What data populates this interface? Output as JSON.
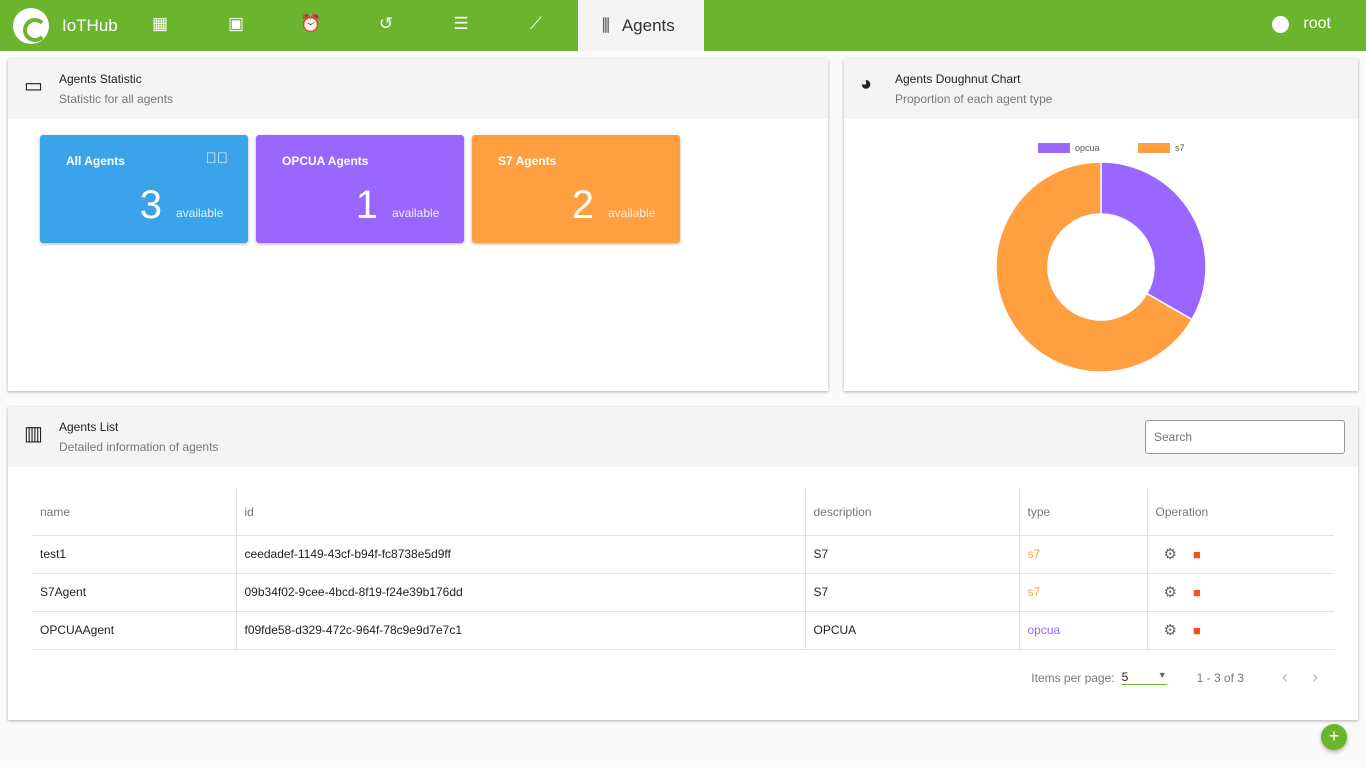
{
  "nav": {
    "brand": "IoTHub",
    "active_tab": "Agents",
    "user": "root",
    "icons": [
      "dashboard-icon",
      "device-icon",
      "alarm-icon",
      "history-icon",
      "list-icon",
      "chart-line-icon"
    ]
  },
  "stats_card": {
    "title": "Agents Statistic",
    "subtitle": "Statistic for all agents",
    "tiles": [
      {
        "label": "All Agents",
        "count": "3",
        "unit": "available",
        "color": "#3ba3ea"
      },
      {
        "label": "OPCUA Agents",
        "count": "1",
        "unit": "available",
        "color": "#9966ff"
      },
      {
        "label": "S7 Agents",
        "count": "2",
        "unit": "available",
        "color": "#ff9f40"
      }
    ]
  },
  "chart_card": {
    "title": "Agents Doughnut Chart",
    "subtitle": "Proportion of each agent type"
  },
  "chart_data": {
    "type": "doughnut",
    "legend_position": "top",
    "categories": [
      "opcua",
      "s7"
    ],
    "values": [
      1,
      2
    ],
    "colors": [
      "#9966ff",
      "#ff9f40"
    ]
  },
  "list_card": {
    "title": "Agents List",
    "subtitle": "Detailed information of agents",
    "search_placeholder": "Search",
    "columns": [
      "name",
      "id",
      "description",
      "type",
      "Operation"
    ],
    "rows": [
      {
        "name": "test1",
        "id": "ceedadef-1149-43cf-b94f-fc8738e5d9ff",
        "description": "S7",
        "type": "s7"
      },
      {
        "name": "S7Agent",
        "id": "09b34f02-9cee-4bcd-8f19-f24e39b176dd",
        "description": "S7",
        "type": "s7"
      },
      {
        "name": "OPCUAAgent",
        "id": "f09fde58-d329-472c-964f-78c9e9d7e7c1",
        "description": "OPCUA",
        "type": "opcua"
      }
    ],
    "pager": {
      "items_label": "Items per page:",
      "page_size": "5",
      "range": "1 - 3 of 3"
    }
  },
  "fab": "+"
}
